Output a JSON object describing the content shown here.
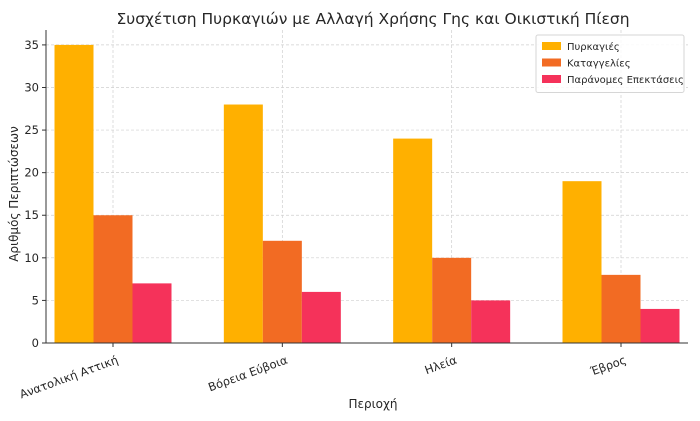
{
  "chart_data": {
    "type": "bar",
    "title": "Συσχέτιση Πυρκαγιών με Αλλαγή Χρήσης Γης και Οικιστική Πίεση",
    "xlabel": "Περιοχή",
    "ylabel": "Αριθμός Περιπτώσεων",
    "categories": [
      "Ανατολική Αττική",
      "Βόρεια Εύβοια",
      "Ηλεία",
      "Έβρος"
    ],
    "series": [
      {
        "name": "Πυρκαγιές",
        "values": [
          35,
          28,
          24,
          19
        ],
        "color": "#FFB000"
      },
      {
        "name": "Καταγγελίες",
        "values": [
          15,
          12,
          10,
          8
        ],
        "color": "#F26B23"
      },
      {
        "name": "Παράνομες Επεκτάσεις",
        "values": [
          7,
          6,
          5,
          4
        ],
        "color": "#F5325A"
      }
    ],
    "ylim": [
      0,
      36.75
    ],
    "yticks": [
      0,
      5,
      10,
      15,
      20,
      25,
      30,
      35
    ],
    "grid": true,
    "legend_position": "top-right"
  }
}
